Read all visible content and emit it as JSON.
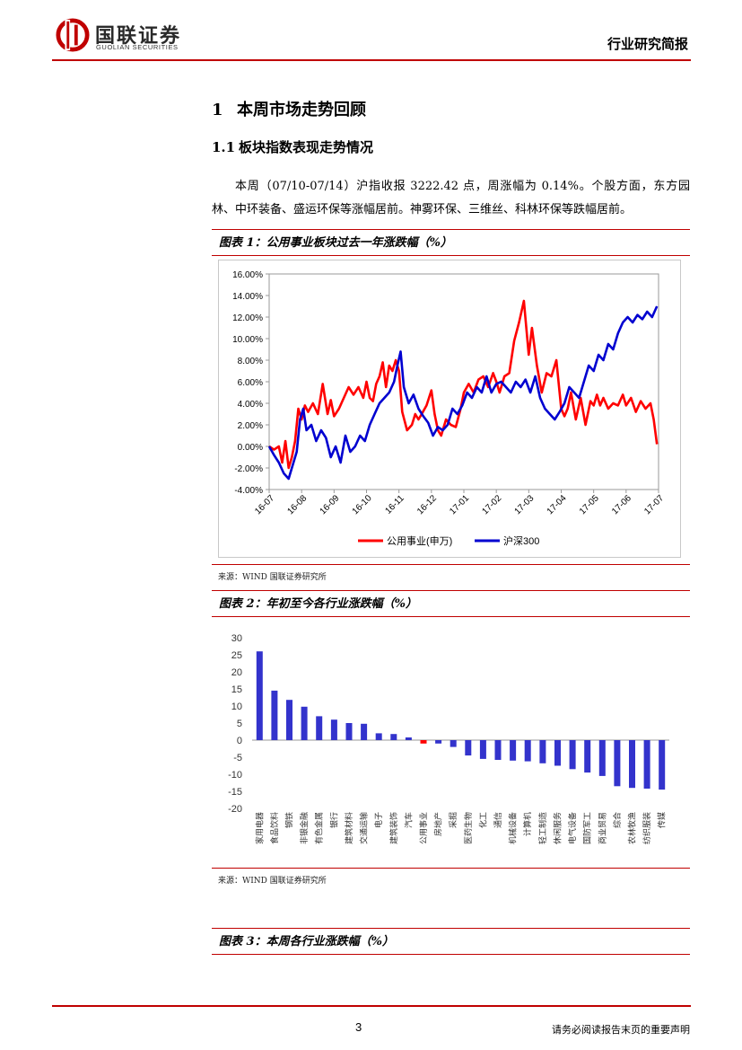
{
  "header": {
    "logo_cn": "国联证券",
    "logo_en": "GUOLIAN SECURITIES",
    "report_type": "行业研究简报",
    "brand_color": "#c00000"
  },
  "section1": {
    "number": "1",
    "title": "本周市场走势回顾"
  },
  "section1_1": {
    "number": "1.1",
    "title": "板块指数表现走势情况"
  },
  "paragraph": "本周（07/10-07/14）沪指收报 3222.42 点，周涨幅为 0.14%。个股方面，东方园林、中环装备、盛运环保等涨幅居前。神雾环保、三维丝、科林环保等跌幅居前。",
  "figure1": {
    "title": "图表 1：公用事业板块过去一年涨跌幅（%）",
    "source": "来源：WIND 国联证券研究所"
  },
  "figure2": {
    "title": "图表 2：年初至今各行业涨跌幅（%）",
    "source": "来源：WIND 国联证券研究所"
  },
  "figure3": {
    "title": "图表 3：本周各行业涨跌幅（%）"
  },
  "chart_data": [
    {
      "type": "line",
      "title": "公用事业板块过去一年涨跌幅（%）",
      "categories": [
        "16-07",
        "16-08",
        "16-09",
        "16-10",
        "16-11",
        "16-12",
        "17-01",
        "17-02",
        "17-03",
        "17-04",
        "17-05",
        "17-06",
        "17-07"
      ],
      "ylim": [
        -4,
        16
      ],
      "yticks": [
        "-4.00%",
        "-2.00%",
        "0.00%",
        "2.00%",
        "4.00%",
        "6.00%",
        "8.00%",
        "10.00%",
        "12.00%",
        "14.00%",
        "16.00%"
      ],
      "series": [
        {
          "name": "公用事业(申万)",
          "color": "#ff0000",
          "x": [
            0,
            0.15,
            0.3,
            0.4,
            0.5,
            0.6,
            0.7,
            0.8,
            0.9,
            1.0,
            1.1,
            1.2,
            1.35,
            1.5,
            1.65,
            1.8,
            1.9,
            2.0,
            2.15,
            2.3,
            2.45,
            2.6,
            2.75,
            2.9,
            3.0,
            3.1,
            3.2,
            3.3,
            3.4,
            3.5,
            3.6,
            3.7,
            3.8,
            3.9,
            4.0,
            4.1,
            4.25,
            4.4,
            4.5,
            4.6,
            4.7,
            4.85,
            5.0,
            5.1,
            5.2,
            5.3,
            5.45,
            5.6,
            5.75,
            5.9,
            6.0,
            6.15,
            6.3,
            6.45,
            6.6,
            6.75,
            6.9,
            7.0,
            7.1,
            7.25,
            7.4,
            7.55,
            7.7,
            7.85,
            8.0,
            8.1,
            8.25,
            8.4,
            8.55,
            8.7,
            8.85,
            9.0,
            9.1,
            9.2,
            9.3,
            9.45,
            9.6,
            9.75,
            9.9,
            10.0,
            10.1,
            10.2,
            10.3,
            10.45,
            10.6,
            10.75,
            10.9,
            11.0,
            11.15,
            11.3,
            11.45,
            11.6,
            11.75,
            11.85,
            11.95
          ],
          "y": [
            0,
            -0.3,
            0,
            -1.5,
            0.5,
            -2.0,
            -1.0,
            0.5,
            3.5,
            2.5,
            3.8,
            3.2,
            4.0,
            3.0,
            5.8,
            3.0,
            4.3,
            2.8,
            3.5,
            4.5,
            5.5,
            4.8,
            5.5,
            4.5,
            6.0,
            4.5,
            4.2,
            5.8,
            6.5,
            7.8,
            5.5,
            7.5,
            7.0,
            8.0,
            7.0,
            3.2,
            1.5,
            2.0,
            3.0,
            2.5,
            3.0,
            3.8,
            5.2,
            3.0,
            1.5,
            1.0,
            2.5,
            2.0,
            1.8,
            3.5,
            5.0,
            5.8,
            5.0,
            6.2,
            6.5,
            5.5,
            6.8,
            6.0,
            5.0,
            6.5,
            6.8,
            9.8,
            11.5,
            13.5,
            8.5,
            11.0,
            7.5,
            5.0,
            6.8,
            6.5,
            8.0,
            3.5,
            2.8,
            3.5,
            5.0,
            2.5,
            4.5,
            2.0,
            4.2,
            3.8,
            4.8,
            3.8,
            4.5,
            3.5,
            4.0,
            3.8,
            4.8,
            3.8,
            4.5,
            3.2,
            4.2,
            3.5,
            4.0,
            2.5,
            0.2
          ]
        },
        {
          "name": "沪深300",
          "color": "#0000d0",
          "x": [
            0,
            0.15,
            0.3,
            0.45,
            0.6,
            0.75,
            0.85,
            0.95,
            1.05,
            1.15,
            1.3,
            1.45,
            1.6,
            1.75,
            1.9,
            2.05,
            2.2,
            2.35,
            2.5,
            2.65,
            2.8,
            2.95,
            3.1,
            3.25,
            3.4,
            3.55,
            3.7,
            3.85,
            3.95,
            4.05,
            4.15,
            4.3,
            4.45,
            4.6,
            4.75,
            4.9,
            5.05,
            5.2,
            5.35,
            5.5,
            5.65,
            5.8,
            5.95,
            6.1,
            6.25,
            6.4,
            6.55,
            6.7,
            6.85,
            7.0,
            7.15,
            7.3,
            7.45,
            7.6,
            7.75,
            7.9,
            8.05,
            8.2,
            8.35,
            8.5,
            8.65,
            8.8,
            8.95,
            9.1,
            9.25,
            9.4,
            9.55,
            9.7,
            9.85,
            10.0,
            10.15,
            10.3,
            10.45,
            10.6,
            10.75,
            10.9,
            11.05,
            11.2,
            11.35,
            11.5,
            11.65,
            11.8,
            11.95
          ],
          "y": [
            0,
            -0.8,
            -1.5,
            -2.5,
            -3.0,
            -1.5,
            -0.5,
            2.5,
            3.5,
            1.5,
            2.0,
            0.5,
            1.5,
            0.8,
            -1.0,
            0,
            -1.5,
            1.0,
            -0.5,
            0,
            1.0,
            0.5,
            2.0,
            3.0,
            4.0,
            4.5,
            5.0,
            6.0,
            7.5,
            8.8,
            5.5,
            4.0,
            4.8,
            3.5,
            2.8,
            2.2,
            1.0,
            1.8,
            1.5,
            2.0,
            3.5,
            3.0,
            3.8,
            5.0,
            4.5,
            5.5,
            5.0,
            6.5,
            5.0,
            5.8,
            6.0,
            5.5,
            5.0,
            6.0,
            5.5,
            6.2,
            5.0,
            6.5,
            4.5,
            3.5,
            3.0,
            2.5,
            3.2,
            4.0,
            5.5,
            5.0,
            4.5,
            6.0,
            7.5,
            7.0,
            8.5,
            8.0,
            9.5,
            9.0,
            10.5,
            11.5,
            12.0,
            11.5,
            12.2,
            11.8,
            12.5,
            12.0,
            13.0
          ]
        }
      ]
    },
    {
      "type": "bar",
      "title": "年初至今各行业涨跌幅（%）",
      "ylim": [
        -20,
        30
      ],
      "yticks": [
        30,
        25,
        20,
        15,
        10,
        5,
        0,
        -5,
        -10,
        -15,
        -20
      ],
      "categories": [
        "家用电器",
        "食品饮料",
        "钢铁",
        "非银金融",
        "有色金属",
        "银行",
        "建筑材料",
        "交通运输",
        "电子",
        "建筑装饰",
        "汽车",
        "公用事业",
        "房地产",
        "采掘",
        "医药生物",
        "化工",
        "通信",
        "机械设备",
        "计算机",
        "轻工制造",
        "休闲服务",
        "电气设备",
        "国防军工",
        "商业贸易",
        "综合",
        "农林牧渔",
        "纺织服装",
        "传媒"
      ],
      "values": [
        26,
        14.5,
        11.8,
        9.8,
        7.0,
        6.0,
        5.0,
        4.8,
        2.0,
        1.8,
        0.8,
        -1.0,
        -1.0,
        -2.0,
        -4.5,
        -5.5,
        -5.8,
        -6.0,
        -6.2,
        -6.8,
        -7.5,
        -8.5,
        -9.5,
        -10.5,
        -13.5,
        -14.0,
        -14.2,
        -14.5
      ],
      "highlight_index": 11,
      "bar_color": "#3333cc",
      "highlight_color": "#ff0000"
    }
  ],
  "footer": {
    "page_number": "3",
    "disclaimer": "请务必阅读报告末页的重要声明"
  }
}
